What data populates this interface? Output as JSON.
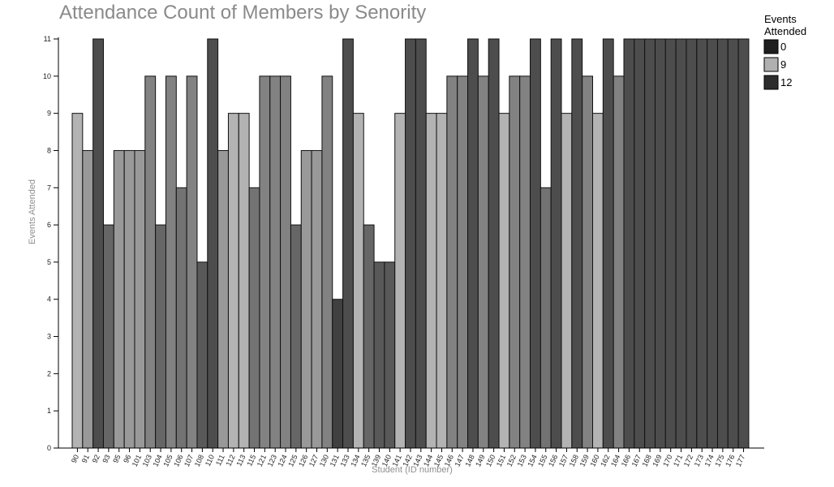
{
  "chart_data": {
    "type": "bar",
    "title": "Attendance Count of Members by Senority",
    "xlabel": "Student (ID number)",
    "ylabel": "Events Attended",
    "ylim": [
      0,
      11
    ],
    "yticks": [
      0,
      1,
      2,
      3,
      4,
      5,
      6,
      7,
      8,
      9,
      10,
      11
    ],
    "grid": false,
    "legend": {
      "title": "Events Attended",
      "position": "top-right",
      "entries": [
        {
          "label": "0",
          "color": "#1e1e1e"
        },
        {
          "label": "9",
          "color": "#b0b0b0"
        },
        {
          "label": "12",
          "color": "#2d2d2d"
        }
      ]
    },
    "categories": [
      "90",
      "91",
      "92",
      "93",
      "95",
      "96",
      "101",
      "103",
      "104",
      "105",
      "106",
      "107",
      "108",
      "110",
      "111",
      "112",
      "113",
      "115",
      "121",
      "123",
      "124",
      "125",
      "126",
      "127",
      "130",
      "131",
      "133",
      "134",
      "135",
      "139",
      "140",
      "141",
      "142",
      "143",
      "144",
      "145",
      "146",
      "147",
      "148",
      "149",
      "150",
      "151",
      "152",
      "153",
      "154",
      "155",
      "156",
      "157",
      "158",
      "159",
      "160",
      "162",
      "164",
      "166",
      "167",
      "168",
      "169",
      "170",
      "171",
      "172",
      "173",
      "174",
      "175",
      "176",
      "177"
    ],
    "values": [
      9,
      8,
      11,
      6,
      8,
      8,
      8,
      10,
      6,
      10,
      7,
      10,
      5,
      11,
      8,
      9,
      9,
      7,
      10,
      10,
      10,
      6,
      8,
      8,
      10,
      4,
      11,
      9,
      6,
      5,
      5,
      9,
      11,
      11,
      9,
      9,
      10,
      10,
      11,
      10,
      11,
      9,
      10,
      10,
      11,
      7,
      11,
      9,
      11,
      10,
      9,
      11,
      10,
      11,
      11,
      11,
      11,
      11,
      11,
      11,
      11,
      11,
      11,
      11,
      11
    ],
    "colors": [
      "#b3b3b3",
      "#999999",
      "#4d4d4d",
      "#666666",
      "#999999",
      "#999999",
      "#999999",
      "#828282",
      "#666666",
      "#828282",
      "#737373",
      "#828282",
      "#595959",
      "#4d4d4d",
      "#999999",
      "#b3b3b3",
      "#b3b3b3",
      "#737373",
      "#828282",
      "#828282",
      "#828282",
      "#666666",
      "#999999",
      "#999999",
      "#828282",
      "#404040",
      "#4d4d4d",
      "#b3b3b3",
      "#666666",
      "#595959",
      "#595959",
      "#b3b3b3",
      "#4d4d4d",
      "#4d4d4d",
      "#b3b3b3",
      "#b3b3b3",
      "#828282",
      "#828282",
      "#4d4d4d",
      "#828282",
      "#4d4d4d",
      "#b3b3b3",
      "#828282",
      "#828282",
      "#4d4d4d",
      "#737373",
      "#4d4d4d",
      "#b3b3b3",
      "#4d4d4d",
      "#828282",
      "#b3b3b3",
      "#4d4d4d",
      "#828282",
      "#4d4d4d",
      "#4d4d4d",
      "#4d4d4d",
      "#4d4d4d",
      "#4d4d4d",
      "#4d4d4d",
      "#4d4d4d",
      "#4d4d4d",
      "#4d4d4d",
      "#4d4d4d",
      "#4d4d4d",
      "#4d4d4d"
    ]
  }
}
